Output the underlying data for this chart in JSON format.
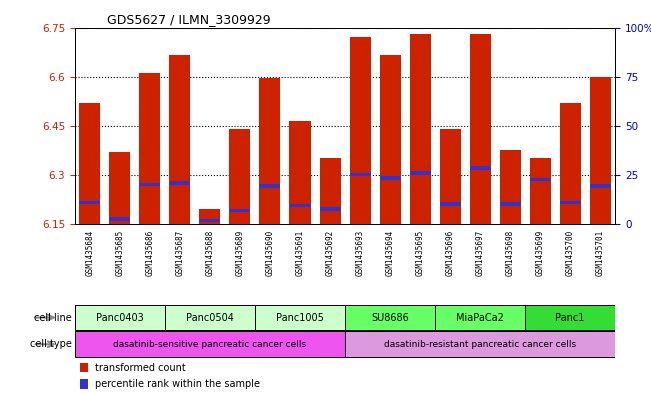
{
  "title": "GDS5627 / ILMN_3309929",
  "samples": [
    "GSM1435684",
    "GSM1435685",
    "GSM1435686",
    "GSM1435687",
    "GSM1435688",
    "GSM1435689",
    "GSM1435690",
    "GSM1435691",
    "GSM1435692",
    "GSM1435693",
    "GSM1435694",
    "GSM1435695",
    "GSM1435696",
    "GSM1435697",
    "GSM1435698",
    "GSM1435699",
    "GSM1435700",
    "GSM1435701"
  ],
  "transformed_counts": [
    6.52,
    6.37,
    6.61,
    6.665,
    6.195,
    6.44,
    6.595,
    6.465,
    6.35,
    6.72,
    6.665,
    6.73,
    6.44,
    6.73,
    6.375,
    6.35,
    6.52,
    6.6
  ],
  "percentile_ranks": [
    6.215,
    6.165,
    6.27,
    6.275,
    6.16,
    6.19,
    6.265,
    6.205,
    6.195,
    6.3,
    6.29,
    6.305,
    6.21,
    6.32,
    6.21,
    6.285,
    6.215,
    6.265
  ],
  "bar_bottom": 6.15,
  "ylim_left": [
    6.15,
    6.75
  ],
  "ylim_right": [
    0,
    100
  ],
  "yticks_left": [
    6.15,
    6.3,
    6.45,
    6.6,
    6.75
  ],
  "yticks_right": [
    0,
    25,
    50,
    75,
    100
  ],
  "ytick_labels_left": [
    "6.15",
    "6.3",
    "6.45",
    "6.6",
    "6.75"
  ],
  "ytick_labels_right": [
    "0",
    "25",
    "50",
    "75",
    "100%"
  ],
  "cell_lines": [
    {
      "label": "Panc0403",
      "start": 0,
      "end": 2,
      "color": "#ccffcc"
    },
    {
      "label": "Panc0504",
      "start": 3,
      "end": 5,
      "color": "#ccffcc"
    },
    {
      "label": "Panc1005",
      "start": 6,
      "end": 8,
      "color": "#ccffcc"
    },
    {
      "label": "SU8686",
      "start": 9,
      "end": 11,
      "color": "#66ff66"
    },
    {
      "label": "MiaPaCa2",
      "start": 12,
      "end": 14,
      "color": "#66ff66"
    },
    {
      "label": "Panc1",
      "start": 15,
      "end": 17,
      "color": "#33dd33"
    }
  ],
  "cell_types": [
    {
      "label": "dasatinib-sensitive pancreatic cancer cells",
      "start": 0,
      "end": 8,
      "color": "#ee55ee"
    },
    {
      "label": "dasatinib-resistant pancreatic cancer cells",
      "start": 9,
      "end": 17,
      "color": "#dd99dd"
    }
  ],
  "bar_color": "#cc2200",
  "percentile_color": "#3333cc",
  "bg_color": "#ffffff",
  "plot_bg": "#ffffff",
  "tick_color_left": "#cc2200",
  "tick_color_right": "#0000cc",
  "sample_bg": "#cccccc"
}
